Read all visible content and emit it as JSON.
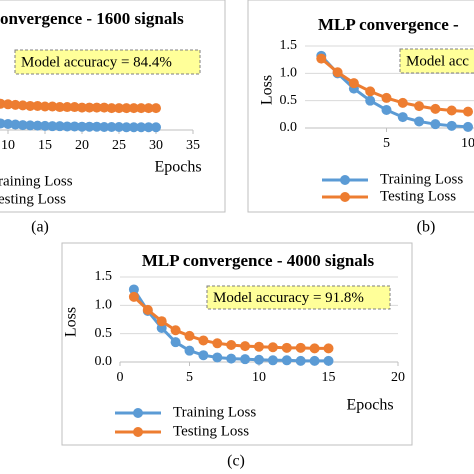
{
  "chart_data": [
    {
      "type": "line",
      "title": "onvergence - 1600 signals",
      "annotation": "Model accuracy = 84.4%",
      "panel": "(a)",
      "xlabel": "Epochs",
      "xlim": [
        0,
        35
      ],
      "xticks": [
        10,
        15,
        20,
        25,
        30,
        35
      ],
      "ylim": [
        0,
        1.5
      ],
      "grid": true,
      "x": [
        9,
        10,
        11,
        12,
        13,
        14,
        15,
        16,
        17,
        18,
        19,
        20,
        21,
        22,
        23,
        24,
        25,
        26,
        27,
        28,
        29,
        30
      ],
      "series": [
        {
          "name": "raining Loss",
          "color": "#5b9bd5",
          "values": [
            0.12,
            0.11,
            0.1,
            0.09,
            0.085,
            0.08,
            0.075,
            0.07,
            0.07,
            0.065,
            0.065,
            0.06,
            0.06,
            0.06,
            0.055,
            0.055,
            0.055,
            0.05,
            0.05,
            0.05,
            0.05,
            0.05
          ]
        },
        {
          "name": "esting Loss",
          "color": "#ed7d31",
          "values": [
            0.48,
            0.47,
            0.46,
            0.45,
            0.44,
            0.44,
            0.43,
            0.43,
            0.42,
            0.42,
            0.42,
            0.41,
            0.41,
            0.41,
            0.41,
            0.4,
            0.4,
            0.4,
            0.4,
            0.4,
            0.4,
            0.4
          ]
        }
      ]
    },
    {
      "type": "line",
      "title": "MLP convergence -",
      "annotation": "Model acc",
      "panel": "(b)",
      "ylabel": "Loss",
      "xlim": [
        0,
        10
      ],
      "xticks": [
        5,
        10
      ],
      "ylim": [
        0,
        1.5
      ],
      "yticks": [
        {
          "value": 0,
          "label": "0.0"
        },
        {
          "value": 0.5,
          "label": "0.5"
        },
        {
          "value": 1,
          "label": "1.0"
        },
        {
          "value": 1.5,
          "label": "1.5"
        }
      ],
      "grid": true,
      "x": [
        1,
        2,
        3,
        4,
        5,
        6,
        7,
        8,
        9,
        10
      ],
      "series": [
        {
          "name": "Training Loss",
          "color": "#5b9bd5",
          "values": [
            1.32,
            1.0,
            0.72,
            0.5,
            0.33,
            0.2,
            0.12,
            0.07,
            0.04,
            0.02
          ]
        },
        {
          "name": "Testing Loss",
          "color": "#ed7d31",
          "values": [
            1.27,
            1.02,
            0.82,
            0.67,
            0.55,
            0.46,
            0.4,
            0.35,
            0.32,
            0.3
          ]
        }
      ]
    },
    {
      "type": "line",
      "title": "MLP convergence - 4000 signals",
      "annotation": "Model accuracy = 91.8%",
      "panel": "(c)",
      "xlabel": "Epochs",
      "ylabel": "Loss",
      "xlim": [
        0,
        20
      ],
      "xticks": [
        0,
        5,
        10,
        15,
        20
      ],
      "ylim": [
        0,
        1.5
      ],
      "yticks": [
        {
          "value": 0,
          "label": "0.0"
        },
        {
          "value": 0.5,
          "label": "0.5"
        },
        {
          "value": 1,
          "label": "1.0"
        },
        {
          "value": 1.5,
          "label": "1.5"
        }
      ],
      "grid": true,
      "x": [
        1,
        2,
        3,
        4,
        5,
        6,
        7,
        8,
        9,
        10,
        11,
        12,
        13,
        14,
        15
      ],
      "series": [
        {
          "name": "Training Loss",
          "color": "#5b9bd5",
          "values": [
            1.28,
            0.9,
            0.6,
            0.35,
            0.2,
            0.12,
            0.08,
            0.06,
            0.05,
            0.04,
            0.03,
            0.03,
            0.02,
            0.02,
            0.02
          ]
        },
        {
          "name": "Testing Loss",
          "color": "#ed7d31",
          "values": [
            1.15,
            0.92,
            0.72,
            0.56,
            0.46,
            0.38,
            0.33,
            0.3,
            0.28,
            0.27,
            0.26,
            0.25,
            0.25,
            0.24,
            0.24
          ]
        }
      ]
    }
  ]
}
